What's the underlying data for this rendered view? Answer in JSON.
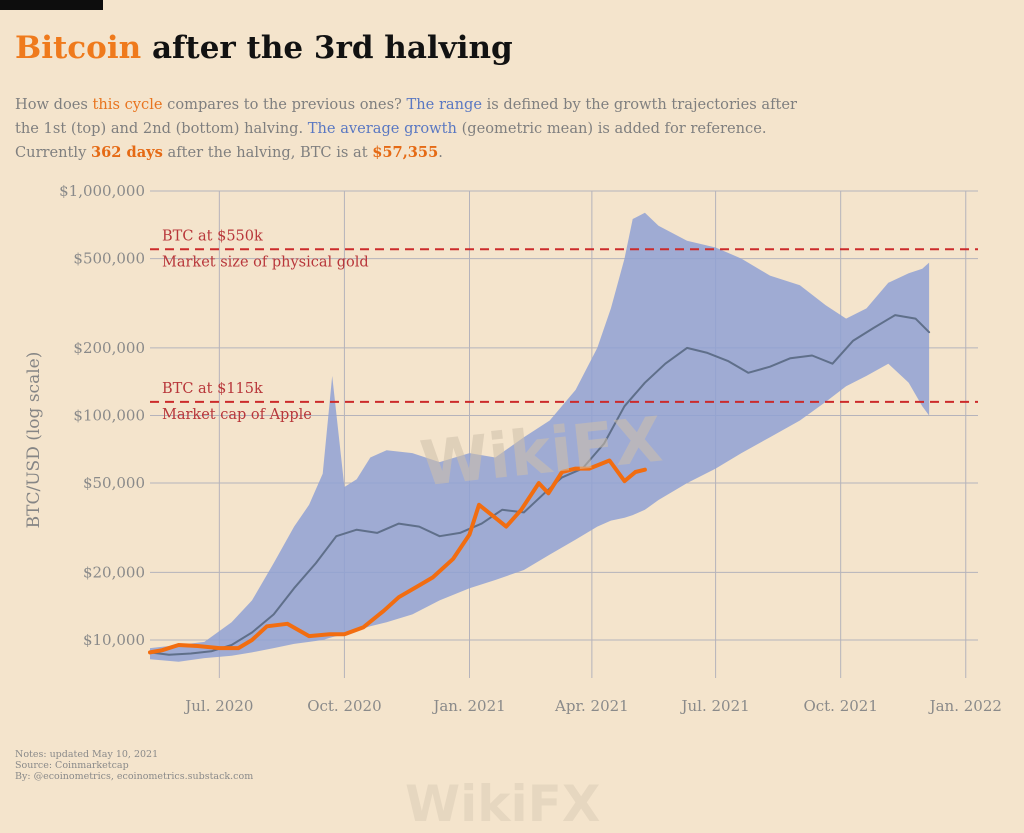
{
  "title": {
    "highlight": "Bitcoin",
    "rest": " after the 3rd halving"
  },
  "subtitle": {
    "l1_a": "How does ",
    "l1_b": "this cycle",
    "l1_c": " compares to the previous ones? ",
    "l1_d": "The range",
    "l1_e": " is defined by the growth trajectories after",
    "l2_a": "the 1st (top) and 2nd (bottom) halving. ",
    "l2_b": "The average growth",
    "l2_c": " (geometric mean) is added for reference.",
    "l3_a": "Currently ",
    "l3_b": "362 days",
    "l3_c": " after the halving, BTC is at ",
    "l3_d": "$57,355",
    "l3_e": "."
  },
  "notes": {
    "updated": "Notes: updated May 10, 2021",
    "source": "Source: Coinmarketcap",
    "by": "By: @ecoinometrics, ecoinometrics.substack.com"
  },
  "watermark": "WikiFX",
  "colors": {
    "background": "#f4e4cc",
    "range": "#8fa1d3",
    "average": "#5f6f8a",
    "current": "#f26d10",
    "reference": "#cc2b2b",
    "grid": "#b5b3bb"
  },
  "chart_data": {
    "type": "line",
    "ylabel": "BTC/USD (log scale)",
    "yscale": "log",
    "ylim": [
      7500,
      1000000
    ],
    "xlim": [
      "2020-05-11",
      "2022-01-10"
    ],
    "x_ticks": [
      {
        "date": "2020-07-01",
        "label": "Jul. 2020"
      },
      {
        "date": "2020-10-01",
        "label": "Oct. 2020"
      },
      {
        "date": "2021-01-01",
        "label": "Jan. 2021"
      },
      {
        "date": "2021-04-01",
        "label": "Apr. 2021"
      },
      {
        "date": "2021-07-01",
        "label": "Jul. 2021"
      },
      {
        "date": "2021-10-01",
        "label": "Oct. 2021"
      },
      {
        "date": "2022-01-01",
        "label": "Jan. 2022"
      }
    ],
    "y_ticks": [
      {
        "value": 10000,
        "label": "$10,000"
      },
      {
        "value": 20000,
        "label": "$20,000"
      },
      {
        "value": 50000,
        "label": "$50,000"
      },
      {
        "value": 100000,
        "label": "$100,000"
      },
      {
        "value": 200000,
        "label": "$200,000"
      },
      {
        "value": 500000,
        "label": "$500,000"
      },
      {
        "value": 1000000,
        "label": "$1,000,000"
      }
    ],
    "reference_lines": [
      {
        "value": 550000,
        "label1": "BTC at $550k",
        "label2": "Market size of physical gold"
      },
      {
        "value": 115000,
        "label1": "BTC at $115k",
        "label2": "Market cap of Apple"
      }
    ],
    "range_band": {
      "x": [
        "2020-05-11",
        "2020-06-01",
        "2020-06-20",
        "2020-07-10",
        "2020-07-25",
        "2020-08-10",
        "2020-08-25",
        "2020-09-05",
        "2020-09-15",
        "2020-09-22",
        "2020-10-01",
        "2020-10-10",
        "2020-10-20",
        "2020-11-01",
        "2020-11-20",
        "2020-12-10",
        "2021-01-01",
        "2021-01-20",
        "2021-02-10",
        "2021-03-01",
        "2021-03-20",
        "2021-04-05",
        "2021-04-15",
        "2021-04-25",
        "2021-05-01",
        "2021-05-10",
        "2021-05-20",
        "2021-06-10",
        "2021-07-01",
        "2021-07-20",
        "2021-08-10",
        "2021-09-01",
        "2021-09-20",
        "2021-10-05",
        "2021-10-20",
        "2021-11-05",
        "2021-11-20",
        "2021-11-30",
        "2021-12-05"
      ],
      "upper": [
        9200,
        9500,
        9800,
        12000,
        15000,
        22000,
        32000,
        40000,
        55000,
        150000,
        48000,
        52000,
        65000,
        70000,
        68000,
        62000,
        68000,
        65000,
        80000,
        95000,
        130000,
        200000,
        300000,
        500000,
        750000,
        800000,
        700000,
        600000,
        560000,
        500000,
        420000,
        380000,
        310000,
        270000,
        300000,
        390000,
        430000,
        450000,
        480000
      ],
      "lower": [
        8200,
        8000,
        8300,
        8500,
        8800,
        9200,
        9600,
        9800,
        10000,
        10300,
        10600,
        11000,
        11500,
        12000,
        13000,
        15000,
        17000,
        18500,
        20500,
        24000,
        28000,
        32000,
        34000,
        35000,
        36000,
        38000,
        42000,
        50000,
        58000,
        68000,
        80000,
        95000,
        115000,
        135000,
        150000,
        170000,
        140000,
        110000,
        100000
      ]
    },
    "series": [
      {
        "name": "",
        "role": "average",
        "x": [
          "2020-05-11",
          "2020-05-25",
          "2020-06-10",
          "2020-06-25",
          "2020-07-10",
          "2020-07-25",
          "2020-08-10",
          "2020-08-25",
          "2020-09-10",
          "2020-09-25",
          "2020-10-10",
          "2020-10-25",
          "2020-11-10",
          "2020-11-25",
          "2020-12-10",
          "2020-12-25",
          "2021-01-10",
          "2021-01-25",
          "2021-02-10",
          "2021-02-25",
          "2021-03-10",
          "2021-03-25",
          "2021-04-10",
          "2021-04-25",
          "2021-05-10",
          "2021-05-25",
          "2021-06-10",
          "2021-06-25",
          "2021-07-10",
          "2021-07-25",
          "2021-08-10",
          "2021-08-25",
          "2021-09-10",
          "2021-09-25",
          "2021-10-10",
          "2021-10-25",
          "2021-11-10",
          "2021-11-25",
          "2021-12-05"
        ],
        "values": [
          8800,
          8600,
          8700,
          8900,
          9500,
          10800,
          13000,
          17000,
          22000,
          29000,
          31000,
          30000,
          33000,
          32000,
          29000,
          30000,
          33000,
          38000,
          37000,
          45000,
          53000,
          58000,
          75000,
          110000,
          140000,
          170000,
          200000,
          190000,
          175000,
          155000,
          165000,
          180000,
          185000,
          170000,
          215000,
          245000,
          280000,
          270000,
          235000
        ]
      },
      {
        "name": "",
        "role": "current",
        "x": [
          "2020-05-11",
          "2020-05-20",
          "2020-06-01",
          "2020-06-15",
          "2020-07-01",
          "2020-07-15",
          "2020-07-25",
          "2020-08-05",
          "2020-08-20",
          "2020-09-05",
          "2020-09-20",
          "2020-10-01",
          "2020-10-15",
          "2020-10-30",
          "2020-11-10",
          "2020-11-25",
          "2020-12-05",
          "2020-12-20",
          "2021-01-01",
          "2021-01-08",
          "2021-01-20",
          "2021-01-28",
          "2021-02-08",
          "2021-02-21",
          "2021-02-28",
          "2021-03-10",
          "2021-03-20",
          "2021-03-30",
          "2021-04-14",
          "2021-04-25",
          "2021-05-03",
          "2021-05-10"
        ],
        "values": [
          8800,
          9000,
          9500,
          9400,
          9200,
          9200,
          10000,
          11500,
          11800,
          10400,
          10600,
          10600,
          11400,
          13500,
          15500,
          17500,
          19000,
          23000,
          29500,
          40000,
          35000,
          32000,
          38000,
          50000,
          45000,
          56000,
          58000,
          58000,
          63000,
          51000,
          56000,
          57355
        ]
      }
    ]
  }
}
